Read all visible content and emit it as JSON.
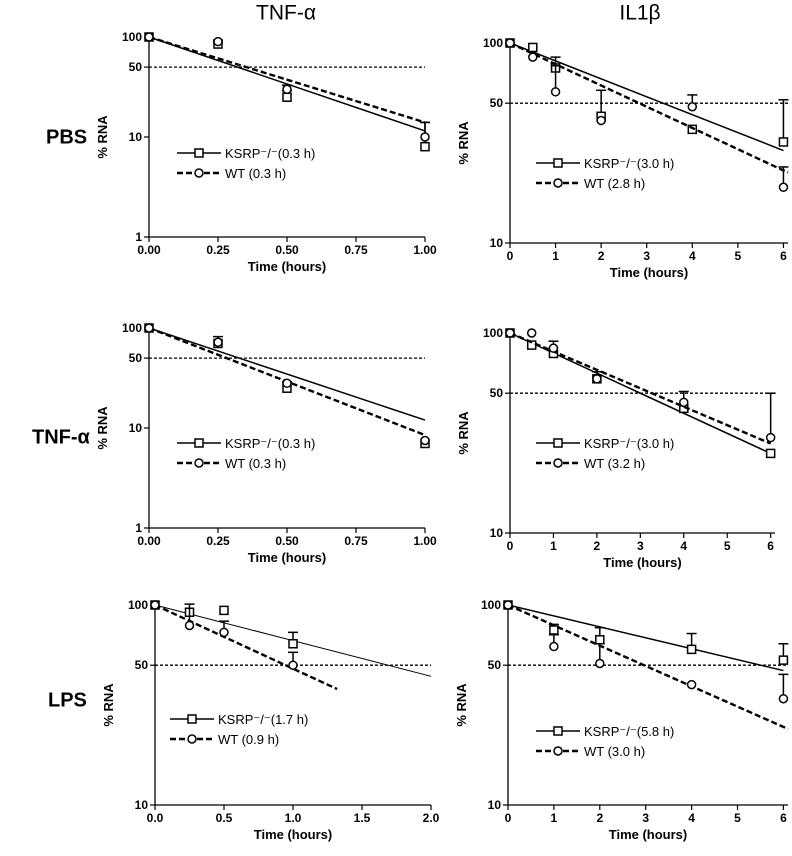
{
  "figure": {
    "column_titles": [
      "TNF-α",
      "IL1β"
    ],
    "row_labels": [
      "PBS",
      "TNF-α",
      "LPS"
    ]
  },
  "chart_data": [
    {
      "type": "scatter",
      "row": "PBS",
      "column": "TNF-α",
      "xlabel": "Time (hours)",
      "ylabel": "% RNA",
      "xlim": [
        0,
        1
      ],
      "ylim": [
        1,
        100
      ],
      "yscale": "log",
      "xticks": [
        "0.00",
        "0.25",
        "0.50",
        "0.75",
        "1.00"
      ],
      "yticks": [
        "1",
        "10",
        "50",
        "100"
      ],
      "reference_line_y": 50,
      "series": [
        {
          "name": "KSRP",
          "legend": "KSRP⁻/⁻(0.3 h)",
          "marker": "square",
          "line": "solid",
          "x": [
            0,
            0.25,
            0.5,
            1.0
          ],
          "y": [
            100,
            85,
            25,
            8
          ],
          "err": [
            0,
            4,
            4,
            6
          ],
          "fit": [
            [
              0,
              100
            ],
            [
              1.0,
              11.5
            ]
          ]
        },
        {
          "name": "WT",
          "legend": "WT (0.3 h)",
          "marker": "circle",
          "line": "dashed",
          "x": [
            0,
            0.25,
            0.5,
            1.0
          ],
          "y": [
            100,
            90,
            30,
            10
          ],
          "err": [
            0,
            3,
            3,
            4
          ],
          "fit": [
            [
              0,
              100
            ],
            [
              1.0,
              14
            ]
          ]
        }
      ]
    },
    {
      "type": "scatter",
      "row": "PBS",
      "column": "IL1β",
      "xlabel": "Time (hours)",
      "ylabel": "% RNA",
      "xlim": [
        0,
        6.1
      ],
      "ylim": [
        10,
        100
      ],
      "yscale": "log",
      "xticks": [
        "0",
        "1",
        "2",
        "3",
        "4",
        "5",
        "6"
      ],
      "yticks": [
        "10",
        "50",
        "100"
      ],
      "reference_line_y": 50,
      "series": [
        {
          "name": "KSRP",
          "legend": "KSRP⁻/⁻(3.0 h)",
          "marker": "square",
          "line": "solid",
          "x": [
            0,
            0.5,
            1,
            2,
            4,
            6
          ],
          "y": [
            100,
            95,
            75,
            43,
            37,
            32
          ],
          "err": [
            0,
            0,
            10,
            15,
            0,
            20
          ],
          "fit": [
            [
              0,
              100
            ],
            [
              6,
              29
            ]
          ]
        },
        {
          "name": "WT",
          "legend": "WT (2.8 h)",
          "marker": "circle",
          "line": "dashed",
          "x": [
            0,
            0.5,
            1,
            2,
            4,
            6
          ],
          "y": [
            100,
            85,
            57,
            41,
            48,
            19
          ],
          "err": [
            0,
            0,
            20,
            0,
            7,
            5
          ],
          "fit": [
            [
              0,
              100
            ],
            [
              6.1,
              22.5
            ]
          ]
        }
      ]
    },
    {
      "type": "scatter",
      "row": "TNF-α",
      "column": "TNF-α",
      "xlabel": "Time (hours)",
      "ylabel": "% RNA",
      "xlim": [
        0,
        1
      ],
      "ylim": [
        1,
        100
      ],
      "yscale": "log",
      "xticks": [
        "0.00",
        "0.25",
        "0.50",
        "0.75",
        "1.00"
      ],
      "yticks": [
        "1",
        "10",
        "50",
        "100"
      ],
      "reference_line_y": 50,
      "series": [
        {
          "name": "KSRP",
          "legend": "KSRP⁻/⁻(0.3 h)",
          "marker": "square",
          "line": "solid",
          "x": [
            0,
            0.25,
            0.5,
            1.0
          ],
          "y": [
            100,
            70,
            25,
            7
          ],
          "err": [
            0,
            12,
            4,
            0
          ],
          "fit": [
            [
              0,
              100
            ],
            [
              1.0,
              12
            ]
          ]
        },
        {
          "name": "WT",
          "legend": "WT (0.3 h)",
          "marker": "circle",
          "line": "dashed",
          "x": [
            0,
            0.25,
            0.5,
            1.0
          ],
          "y": [
            100,
            72,
            28,
            7.5
          ],
          "err": [
            0,
            0,
            0,
            0
          ],
          "fit": [
            [
              0,
              100
            ],
            [
              1.0,
              8.5
            ]
          ]
        }
      ]
    },
    {
      "type": "scatter",
      "row": "TNF-α",
      "column": "IL1β",
      "xlabel": "Time (hours)",
      "ylabel": "% RNA",
      "xlim": [
        0,
        6.1
      ],
      "ylim": [
        10,
        100
      ],
      "yscale": "log",
      "xticks": [
        "0",
        "1",
        "2",
        "3",
        "4",
        "5",
        "6"
      ],
      "yticks": [
        "10",
        "50",
        "100"
      ],
      "reference_line_y": 50,
      "series": [
        {
          "name": "KSRP",
          "legend": "KSRP⁻/⁻(3.0 h)",
          "marker": "square",
          "line": "solid",
          "x": [
            0,
            0.5,
            1,
            2,
            4,
            6
          ],
          "y": [
            100,
            87,
            79,
            59,
            42,
            25
          ],
          "err": [
            0,
            0,
            12,
            0,
            0,
            0
          ],
          "fit": [
            [
              0,
              100
            ],
            [
              6,
              25
            ]
          ]
        },
        {
          "name": "WT",
          "legend": "WT (3.2 h)",
          "marker": "circle",
          "line": "dashed",
          "x": [
            0,
            0.5,
            1,
            2,
            4,
            6
          ],
          "y": [
            100,
            100,
            84,
            59,
            45,
            30
          ],
          "err": [
            0,
            0,
            0,
            5,
            6,
            20
          ],
          "fit": [
            [
              0,
              100
            ],
            [
              6,
              28
            ]
          ]
        }
      ]
    },
    {
      "type": "scatter",
      "row": "LPS",
      "column": "TNF-α",
      "xlabel": "Time (hours)",
      "ylabel": "% RNA",
      "xlim": [
        0,
        2
      ],
      "ylim": [
        10,
        100
      ],
      "yscale": "log",
      "xticks": [
        "0.0",
        "0.5",
        "1.0",
        "1.5",
        "2.0"
      ],
      "yticks": [
        "10",
        "50",
        "100"
      ],
      "reference_line_y": 50,
      "series": [
        {
          "name": "KSRP",
          "legend": "KSRP⁻/⁻(1.7 h)",
          "marker": "square",
          "line": "solid",
          "x": [
            0,
            0.25,
            0.5,
            1.0
          ],
          "y": [
            100,
            92,
            94,
            64
          ],
          "err": [
            0,
            0,
            0,
            9
          ],
          "fit": [
            [
              0,
              100
            ],
            [
              2.0,
              44
            ]
          ]
        },
        {
          "name": "WT",
          "legend": "WT (0.9 h)",
          "marker": "circle",
          "line": "dashed",
          "x": [
            0,
            0.25,
            0.5,
            1.0
          ],
          "y": [
            100,
            79,
            73,
            50
          ],
          "err": [
            0,
            22,
            10,
            8
          ],
          "fit": [
            [
              0,
              100
            ],
            [
              1.32,
              38
            ]
          ]
        }
      ]
    },
    {
      "type": "scatter",
      "row": "LPS",
      "column": "IL1β",
      "xlabel": "Time (hours)",
      "ylabel": "% RNA",
      "xlim": [
        0,
        6.1
      ],
      "ylim": [
        10,
        100
      ],
      "yscale": "log",
      "xticks": [
        "0",
        "1",
        "2",
        "3",
        "4",
        "5",
        "6"
      ],
      "yticks": [
        "10",
        "50",
        "100"
      ],
      "reference_line_y": 50,
      "series": [
        {
          "name": "KSRP",
          "legend": "KSRP⁻/⁻(5.8 h)",
          "marker": "square",
          "line": "solid",
          "x": [
            0,
            1,
            2,
            4,
            6
          ],
          "y": [
            100,
            75,
            67,
            60,
            53
          ],
          "err": [
            0,
            5,
            10,
            12,
            11
          ],
          "fit": [
            [
              0,
              100
            ],
            [
              6,
              47
            ]
          ]
        },
        {
          "name": "WT",
          "legend": "WT (3.0 h)",
          "marker": "circle",
          "line": "dashed",
          "x": [
            0,
            1,
            2,
            4,
            6
          ],
          "y": [
            100,
            62,
            51,
            40,
            34
          ],
          "err": [
            0,
            9,
            13,
            0,
            11
          ],
          "fit": [
            [
              0,
              100
            ],
            [
              6.1,
              24
            ]
          ]
        }
      ]
    }
  ]
}
